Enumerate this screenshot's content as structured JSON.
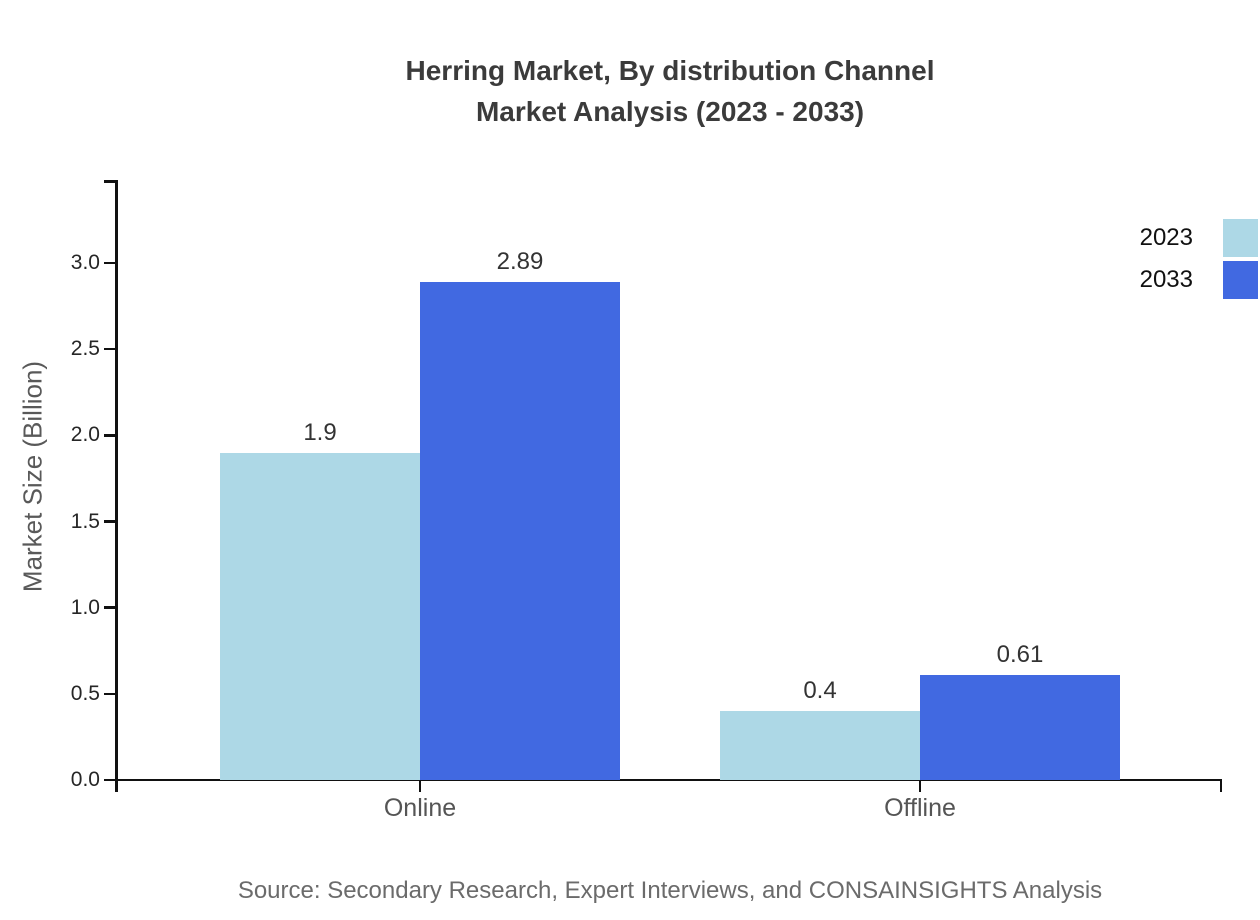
{
  "title": {
    "line1": "Herring Market, By distribution Channel",
    "line2": "Market Analysis (2023 - 2033)"
  },
  "source": "Source: Secondary Research, Expert Interviews, and CONSAINSIGHTS Analysis",
  "chart_data": {
    "type": "bar",
    "title": "Herring Market, By distribution Channel Market Analysis (2023 - 2033)",
    "categories": [
      "Online",
      "Offline"
    ],
    "series": [
      {
        "name": "2023",
        "color": "#ADD8E6",
        "values": [
          1.9,
          0.4
        ],
        "labels": [
          "1.9",
          "0.4"
        ]
      },
      {
        "name": "2033",
        "color": "#4169E1",
        "values": [
          2.89,
          0.61
        ],
        "labels": [
          "2.89",
          "0.61"
        ]
      }
    ],
    "xlabel": "",
    "ylabel": "Market Size (Billion)",
    "ylim": [
      0,
      3.48
    ],
    "yticks": {
      "values": [
        0.0,
        0.5,
        1.0,
        1.5,
        2.0,
        2.5,
        3.0
      ],
      "labels": [
        "0.0",
        "0.5",
        "1.0",
        "1.5",
        "2.0",
        "2.5",
        "3.0"
      ]
    },
    "grid": false,
    "legend": {
      "position": "upper-right",
      "entries": [
        "2023",
        "2033"
      ]
    },
    "axis_color": "#111111"
  }
}
